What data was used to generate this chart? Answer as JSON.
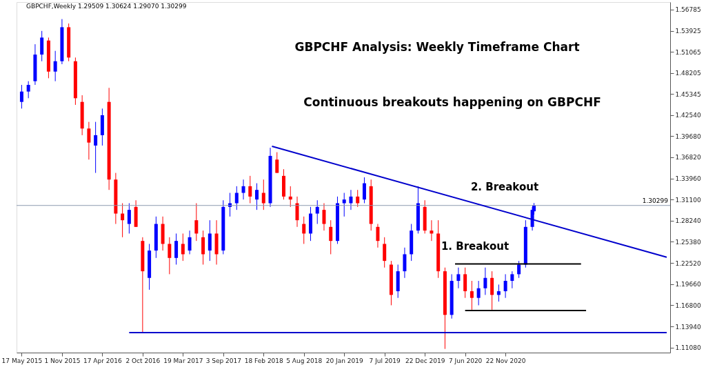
{
  "chart_data": {
    "type": "candlestick",
    "title": "GBPCHF Analysis: Weekly Timeframe Chart",
    "subtitle": "Continuous breakouts happening on GBPCHF",
    "annotations": [
      "GBPCHF,Weekly  1.29509 1.30624 1.29070 1.30299",
      "1. Breakout",
      "2. Breakout"
    ],
    "x": [
      "2015-05-17",
      "2015-06-14",
      "2015-07-12",
      "2015-08-09",
      "2015-09-06",
      "2015-10-04",
      "2015-11-01",
      "2015-11-29",
      "2015-12-27",
      "2016-01-24",
      "2016-02-21",
      "2016-03-20",
      "2016-04-17",
      "2016-05-15",
      "2016-06-12",
      "2016-07-10",
      "2016-08-07",
      "2016-09-04",
      "2016-10-02",
      "2016-10-30",
      "2016-11-27",
      "2016-12-25",
      "2017-01-22",
      "2017-02-19",
      "2017-03-19",
      "2017-04-16",
      "2017-05-14",
      "2017-06-11",
      "2017-07-09",
      "2017-08-06",
      "2017-09-03",
      "2017-10-01",
      "2017-10-29",
      "2017-11-26",
      "2017-12-24",
      "2018-01-21",
      "2018-02-18",
      "2018-03-18",
      "2018-04-15",
      "2018-05-13",
      "2018-06-10",
      "2018-07-08",
      "2018-08-05",
      "2018-09-02",
      "2018-09-30",
      "2018-10-28",
      "2018-11-25",
      "2018-12-23",
      "2019-01-20",
      "2019-02-17",
      "2019-03-17",
      "2019-04-14",
      "2019-05-12",
      "2019-06-09",
      "2019-07-07",
      "2019-08-04",
      "2019-09-01",
      "2019-09-29",
      "2019-10-27",
      "2019-11-24",
      "2019-12-22",
      "2020-01-19",
      "2020-02-16",
      "2020-03-15",
      "2020-04-12",
      "2020-05-10",
      "2020-06-07",
      "2020-07-05",
      "2020-08-02",
      "2020-08-30",
      "2020-09-27",
      "2020-10-25",
      "2020-11-22",
      "2020-12-20",
      "2021-01-17",
      "2021-02-14",
      "2021-03-14",
      "2021-03-21"
    ],
    "ohlc": [
      [
        1.443,
        1.466,
        1.434,
        1.457
      ],
      [
        1.457,
        1.471,
        1.448,
        1.466
      ],
      [
        1.471,
        1.521,
        1.466,
        1.507
      ],
      [
        1.507,
        1.539,
        1.498,
        1.53
      ],
      [
        1.526,
        1.53,
        1.475,
        1.484
      ],
      [
        1.484,
        1.512,
        1.471,
        1.498
      ],
      [
        1.498,
        1.555,
        1.494,
        1.544
      ],
      [
        1.544,
        1.549,
        1.498,
        1.503
      ],
      [
        1.498,
        1.503,
        1.439,
        1.448
      ],
      [
        1.443,
        1.452,
        1.398,
        1.407
      ],
      [
        1.407,
        1.416,
        1.365,
        1.388
      ],
      [
        1.384,
        1.416,
        1.347,
        1.398
      ],
      [
        1.398,
        1.434,
        1.384,
        1.425
      ],
      [
        1.443,
        1.462,
        1.324,
        1.338
      ],
      [
        1.338,
        1.347,
        1.278,
        1.292
      ],
      [
        1.292,
        1.306,
        1.26,
        1.283
      ],
      [
        1.278,
        1.306,
        1.265,
        1.297
      ],
      [
        1.301,
        1.31,
        1.274,
        1.274
      ],
      [
        1.255,
        1.26,
        1.132,
        1.214
      ],
      [
        1.205,
        1.251,
        1.189,
        1.242
      ],
      [
        1.242,
        1.288,
        1.232,
        1.278
      ],
      [
        1.278,
        1.288,
        1.242,
        1.251
      ],
      [
        1.251,
        1.26,
        1.21,
        1.232
      ],
      [
        1.232,
        1.265,
        1.223,
        1.255
      ],
      [
        1.251,
        1.265,
        1.228,
        1.237
      ],
      [
        1.242,
        1.269,
        1.237,
        1.26
      ],
      [
        1.283,
        1.306,
        1.255,
        1.265
      ],
      [
        1.26,
        1.269,
        1.223,
        1.237
      ],
      [
        1.242,
        1.283,
        1.228,
        1.265
      ],
      [
        1.265,
        1.283,
        1.223,
        1.237
      ],
      [
        1.242,
        1.31,
        1.237,
        1.301
      ],
      [
        1.301,
        1.32,
        1.288,
        1.306
      ],
      [
        1.306,
        1.329,
        1.297,
        1.32
      ],
      [
        1.32,
        1.338,
        1.311,
        1.329
      ],
      [
        1.329,
        1.343,
        1.306,
        1.315
      ],
      [
        1.311,
        1.333,
        1.297,
        1.324
      ],
      [
        1.32,
        1.338,
        1.297,
        1.306
      ],
      [
        1.306,
        1.381,
        1.301,
        1.37
      ],
      [
        1.365,
        1.375,
        1.347,
        1.347
      ],
      [
        1.343,
        1.352,
        1.311,
        1.315
      ],
      [
        1.315,
        1.329,
        1.301,
        1.311
      ],
      [
        1.306,
        1.315,
        1.274,
        1.283
      ],
      [
        1.278,
        1.288,
        1.251,
        1.265
      ],
      [
        1.265,
        1.301,
        1.255,
        1.292
      ],
      [
        1.292,
        1.31,
        1.278,
        1.301
      ],
      [
        1.297,
        1.306,
        1.269,
        1.278
      ],
      [
        1.274,
        1.283,
        1.237,
        1.255
      ],
      [
        1.255,
        1.315,
        1.251,
        1.306
      ],
      [
        1.306,
        1.32,
        1.288,
        1.311
      ],
      [
        1.306,
        1.324,
        1.297,
        1.315
      ],
      [
        1.315,
        1.324,
        1.301,
        1.306
      ],
      [
        1.311,
        1.341,
        1.306,
        1.333
      ],
      [
        1.329,
        1.338,
        1.269,
        1.278
      ],
      [
        1.274,
        1.278,
        1.246,
        1.255
      ],
      [
        1.251,
        1.26,
        1.219,
        1.228
      ],
      [
        1.223,
        1.228,
        1.168,
        1.182
      ],
      [
        1.187,
        1.223,
        1.178,
        1.214
      ],
      [
        1.214,
        1.246,
        1.205,
        1.237
      ],
      [
        1.237,
        1.278,
        1.228,
        1.269
      ],
      [
        1.269,
        1.329,
        1.265,
        1.306
      ],
      [
        1.301,
        1.31,
        1.265,
        1.269
      ],
      [
        1.269,
        1.283,
        1.255,
        1.265
      ],
      [
        1.265,
        1.283,
        1.205,
        1.214
      ],
      [
        1.214,
        1.219,
        1.109,
        1.155
      ],
      [
        1.155,
        1.21,
        1.15,
        1.201
      ],
      [
        1.201,
        1.219,
        1.191,
        1.21
      ],
      [
        1.21,
        1.219,
        1.178,
        1.187
      ],
      [
        1.187,
        1.201,
        1.162,
        1.178
      ],
      [
        1.178,
        1.201,
        1.168,
        1.191
      ],
      [
        1.191,
        1.219,
        1.182,
        1.205
      ],
      [
        1.205,
        1.214,
        1.162,
        1.182
      ],
      [
        1.182,
        1.196,
        1.173,
        1.187
      ],
      [
        1.187,
        1.21,
        1.178,
        1.201
      ],
      [
        1.201,
        1.214,
        1.191,
        1.21
      ],
      [
        1.21,
        1.228,
        1.205,
        1.223
      ],
      [
        1.223,
        1.283,
        1.219,
        1.274
      ],
      [
        1.274,
        1.301,
        1.269,
        1.297
      ],
      [
        1.29509,
        1.30624,
        1.2907,
        1.30299
      ]
    ],
    "colors": [
      "#0000ff",
      "#0000ff",
      "#0000ff",
      "#0000ff",
      "#ff0000",
      "#0000ff",
      "#0000ff",
      "#ff0000",
      "#ff0000",
      "#ff0000",
      "#ff0000",
      "#0000ff",
      "#0000ff",
      "#ff0000",
      "#ff0000",
      "#ff0000",
      "#0000ff",
      "#ff0000",
      "#ff0000",
      "#0000ff",
      "#0000ff",
      "#ff0000",
      "#ff0000",
      "#0000ff",
      "#ff0000",
      "#0000ff",
      "#ff0000",
      "#ff0000",
      "#0000ff",
      "#ff0000",
      "#0000ff",
      "#0000ff",
      "#0000ff",
      "#0000ff",
      "#ff0000",
      "#0000ff",
      "#ff0000",
      "#0000ff",
      "#ff0000",
      "#ff0000",
      "#ff0000",
      "#ff0000",
      "#ff0000",
      "#0000ff",
      "#0000ff",
      "#ff0000",
      "#ff0000",
      "#0000ff",
      "#0000ff",
      "#0000ff",
      "#ff0000",
      "#0000ff",
      "#ff0000",
      "#ff0000",
      "#ff0000",
      "#ff0000",
      "#0000ff",
      "#0000ff",
      "#0000ff",
      "#0000ff",
      "#ff0000",
      "#ff0000",
      "#ff0000",
      "#ff0000",
      "#0000ff",
      "#0000ff",
      "#ff0000",
      "#ff0000",
      "#0000ff",
      "#0000ff",
      "#ff0000",
      "#0000ff",
      "#0000ff",
      "#0000ff",
      "#0000ff",
      "#0000ff",
      "#0000ff",
      "#0000ff"
    ],
    "series": [
      {
        "type": "line",
        "color": "#0000cc",
        "x": [
          "2018-03-25",
          "2022-09-25"
        ],
        "values": [
          1.383,
          1.233
        ]
      },
      {
        "type": "line",
        "color": "#0000cc",
        "x": [
          "2016-08-07",
          "2022-09-25"
        ],
        "values": [
          1.131,
          1.131
        ]
      },
      {
        "type": "line",
        "color": "#000000",
        "x": [
          "2020-04-26",
          "2021-10-03"
        ],
        "values": [
          1.224,
          1.224
        ]
      },
      {
        "type": "line",
        "color": "#000000",
        "x": [
          "2020-06-07",
          "2021-10-24"
        ],
        "values": [
          1.161,
          1.161
        ]
      }
    ],
    "ref_lines": [
      {
        "axis": "y",
        "value": 1.30299,
        "label": "1.30299",
        "color": "#8c9bb0"
      }
    ],
    "xlim": [
      "2015-05-10",
      "2022-09-25"
    ],
    "ylim": [
      1.104,
      1.578
    ],
    "xticks": [
      {
        "value": "2015-05-17",
        "label": "17 May 2015"
      },
      {
        "value": "2015-11-01",
        "label": "1 Nov 2015"
      },
      {
        "value": "2016-04-17",
        "label": "17 Apr 2016"
      },
      {
        "value": "2016-10-02",
        "label": "2 Oct 2016"
      },
      {
        "value": "2017-03-19",
        "label": "19 Mar 2017"
      },
      {
        "value": "2017-09-03",
        "label": "3 Sep 2017"
      },
      {
        "value": "2018-02-18",
        "label": "18 Feb 2018"
      },
      {
        "value": "2018-08-05",
        "label": "5 Aug 2018"
      },
      {
        "value": "2019-01-20",
        "label": "20 Jan 2019"
      },
      {
        "value": "2019-07-07",
        "label": "7 Jul 2019"
      },
      {
        "value": "2019-12-22",
        "label": "22 Dec 2019"
      },
      {
        "value": "2020-06-07",
        "label": "7 Jun 2020"
      },
      {
        "value": "2020-11-22",
        "label": "22 Nov 2020"
      }
    ],
    "yticks": [
      {
        "value": 1.1108,
        "label": "1.11080"
      },
      {
        "value": 1.1394,
        "label": "1.13940"
      },
      {
        "value": 1.168,
        "label": "1.16800"
      },
      {
        "value": 1.1966,
        "label": "1.19660"
      },
      {
        "value": 1.2252,
        "label": "1.22520"
      },
      {
        "value": 1.2538,
        "label": "1.25380"
      },
      {
        "value": 1.2824,
        "label": "1.28240"
      },
      {
        "value": 1.311,
        "label": "1.31100"
      },
      {
        "value": 1.3396,
        "label": "1.33960"
      },
      {
        "value": 1.3682,
        "label": "1.36820"
      },
      {
        "value": 1.3968,
        "label": "1.39680"
      },
      {
        "value": 1.4254,
        "label": "1.42540"
      },
      1.45345,
      1.48205,
      1.51065,
      1.53925,
      1.56785
    ],
    "grid": false
  }
}
